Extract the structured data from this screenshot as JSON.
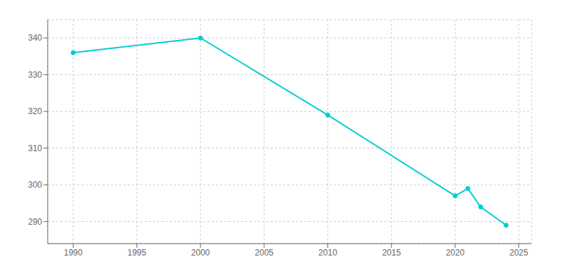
{
  "chart_data": {
    "type": "line",
    "x": [
      1990,
      2000,
      2010,
      2020,
      2021,
      2022,
      2024
    ],
    "values": [
      336,
      340,
      319,
      297,
      299,
      294,
      289
    ],
    "color": "#00CED1",
    "marker": "circle",
    "xlim": [
      1988,
      2026
    ],
    "ylim": [
      284,
      345
    ],
    "xticks": [
      1990,
      1995,
      2000,
      2005,
      2010,
      2015,
      2020,
      2025
    ],
    "yticks": [
      290,
      300,
      310,
      320,
      330,
      340
    ],
    "grid": true
  }
}
